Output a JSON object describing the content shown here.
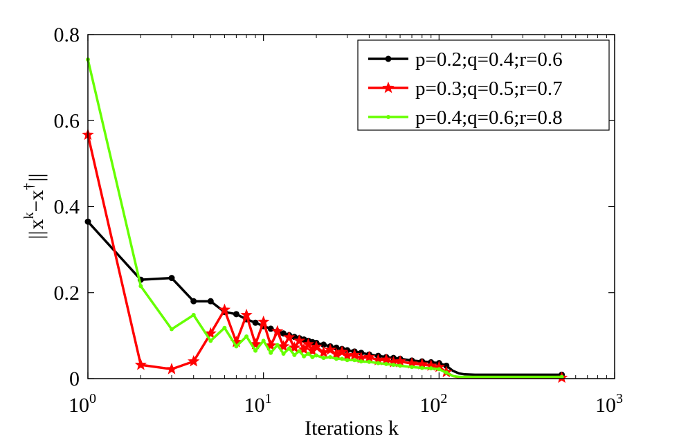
{
  "chart_data": {
    "type": "line",
    "title": "",
    "xlabel": "Iterations k",
    "ylabel": "|| x^k − x^† ||",
    "ylabel_parts": {
      "open": "||",
      "x1": "x",
      "sup1": "k",
      "minus": "−",
      "x2": "x",
      "sup2": "†",
      "close": "||"
    },
    "xscale": "log",
    "xlim": [
      1,
      1000
    ],
    "ylim": [
      0,
      0.8
    ],
    "xticks": [
      {
        "value": 1,
        "base": "10",
        "exp": "0"
      },
      {
        "value": 10,
        "base": "10",
        "exp": "1"
      },
      {
        "value": 100,
        "base": "10",
        "exp": "2"
      },
      {
        "value": 1000,
        "base": "10",
        "exp": "3"
      }
    ],
    "yticks": [
      {
        "value": 0,
        "label": "0"
      },
      {
        "value": 0.2,
        "label": "0.2"
      },
      {
        "value": 0.4,
        "label": "0.4"
      },
      {
        "value": 0.6,
        "label": "0.6"
      },
      {
        "value": 0.8,
        "label": "0.8"
      }
    ],
    "legend_position": "top-right",
    "series": [
      {
        "name": "p=0.2;q=0.4;r=0.6",
        "color": "#000000",
        "marker": "dot",
        "x": [
          1,
          2,
          3,
          4,
          5,
          6,
          7,
          8,
          9,
          10,
          11,
          12,
          13,
          14,
          15,
          16,
          17,
          18,
          19,
          20,
          22,
          24,
          26,
          28,
          30,
          33,
          36,
          40,
          45,
          50,
          55,
          60,
          70,
          80,
          90,
          100,
          110,
          120,
          130,
          140,
          160,
          200,
          300,
          400,
          500
        ],
        "y": [
          0.365,
          0.23,
          0.234,
          0.18,
          0.18,
          0.155,
          0.15,
          0.138,
          0.13,
          0.122,
          0.116,
          0.11,
          0.105,
          0.101,
          0.097,
          0.094,
          0.091,
          0.088,
          0.085,
          0.083,
          0.079,
          0.075,
          0.072,
          0.069,
          0.066,
          0.063,
          0.06,
          0.056,
          0.053,
          0.05,
          0.048,
          0.046,
          0.042,
          0.04,
          0.038,
          0.036,
          0.03,
          0.018,
          0.012,
          0.01,
          0.009,
          0.009,
          0.009,
          0.009,
          0.009
        ]
      },
      {
        "name": "p=0.3;q=0.5;r=0.7",
        "color": "#ff0000",
        "marker": "star",
        "x": [
          1,
          2,
          3,
          4,
          5,
          6,
          7,
          8,
          9,
          10,
          11,
          12,
          13,
          14,
          15,
          16,
          17,
          18,
          19,
          20,
          22,
          24,
          26,
          28,
          30,
          33,
          36,
          40,
          45,
          50,
          55,
          60,
          70,
          80,
          90,
          100,
          110,
          120,
          130,
          140,
          160,
          200,
          300,
          400,
          500
        ],
        "y": [
          0.567,
          0.032,
          0.022,
          0.04,
          0.105,
          0.16,
          0.085,
          0.148,
          0.08,
          0.132,
          0.077,
          0.11,
          0.075,
          0.096,
          0.072,
          0.088,
          0.068,
          0.08,
          0.065,
          0.074,
          0.061,
          0.067,
          0.057,
          0.062,
          0.053,
          0.055,
          0.048,
          0.05,
          0.043,
          0.044,
          0.038,
          0.04,
          0.035,
          0.033,
          0.03,
          0.027,
          0.015,
          0.006,
          0.003,
          0.002,
          0.002,
          0.002,
          0.002,
          0.002,
          0.002
        ]
      },
      {
        "name": "p=0.4;q=0.6;r=0.8",
        "color": "#66ff00",
        "marker": "small-dot",
        "x": [
          1,
          2,
          3,
          4,
          5,
          6,
          7,
          8,
          9,
          10,
          11,
          12,
          13,
          14,
          15,
          16,
          17,
          18,
          19,
          20,
          22,
          24,
          26,
          28,
          30,
          33,
          36,
          40,
          45,
          50,
          55,
          60,
          70,
          80,
          90,
          100,
          110,
          120,
          130,
          140,
          160,
          200,
          300,
          400,
          500
        ],
        "y": [
          0.742,
          0.215,
          0.115,
          0.148,
          0.088,
          0.118,
          0.075,
          0.098,
          0.065,
          0.088,
          0.06,
          0.078,
          0.058,
          0.07,
          0.055,
          0.064,
          0.052,
          0.058,
          0.05,
          0.054,
          0.048,
          0.05,
          0.046,
          0.046,
          0.043,
          0.043,
          0.04,
          0.039,
          0.036,
          0.034,
          0.032,
          0.03,
          0.027,
          0.025,
          0.024,
          0.022,
          0.014,
          0.006,
          0.004,
          0.004,
          0.004,
          0.004,
          0.004,
          0.004,
          0.004
        ]
      }
    ]
  }
}
